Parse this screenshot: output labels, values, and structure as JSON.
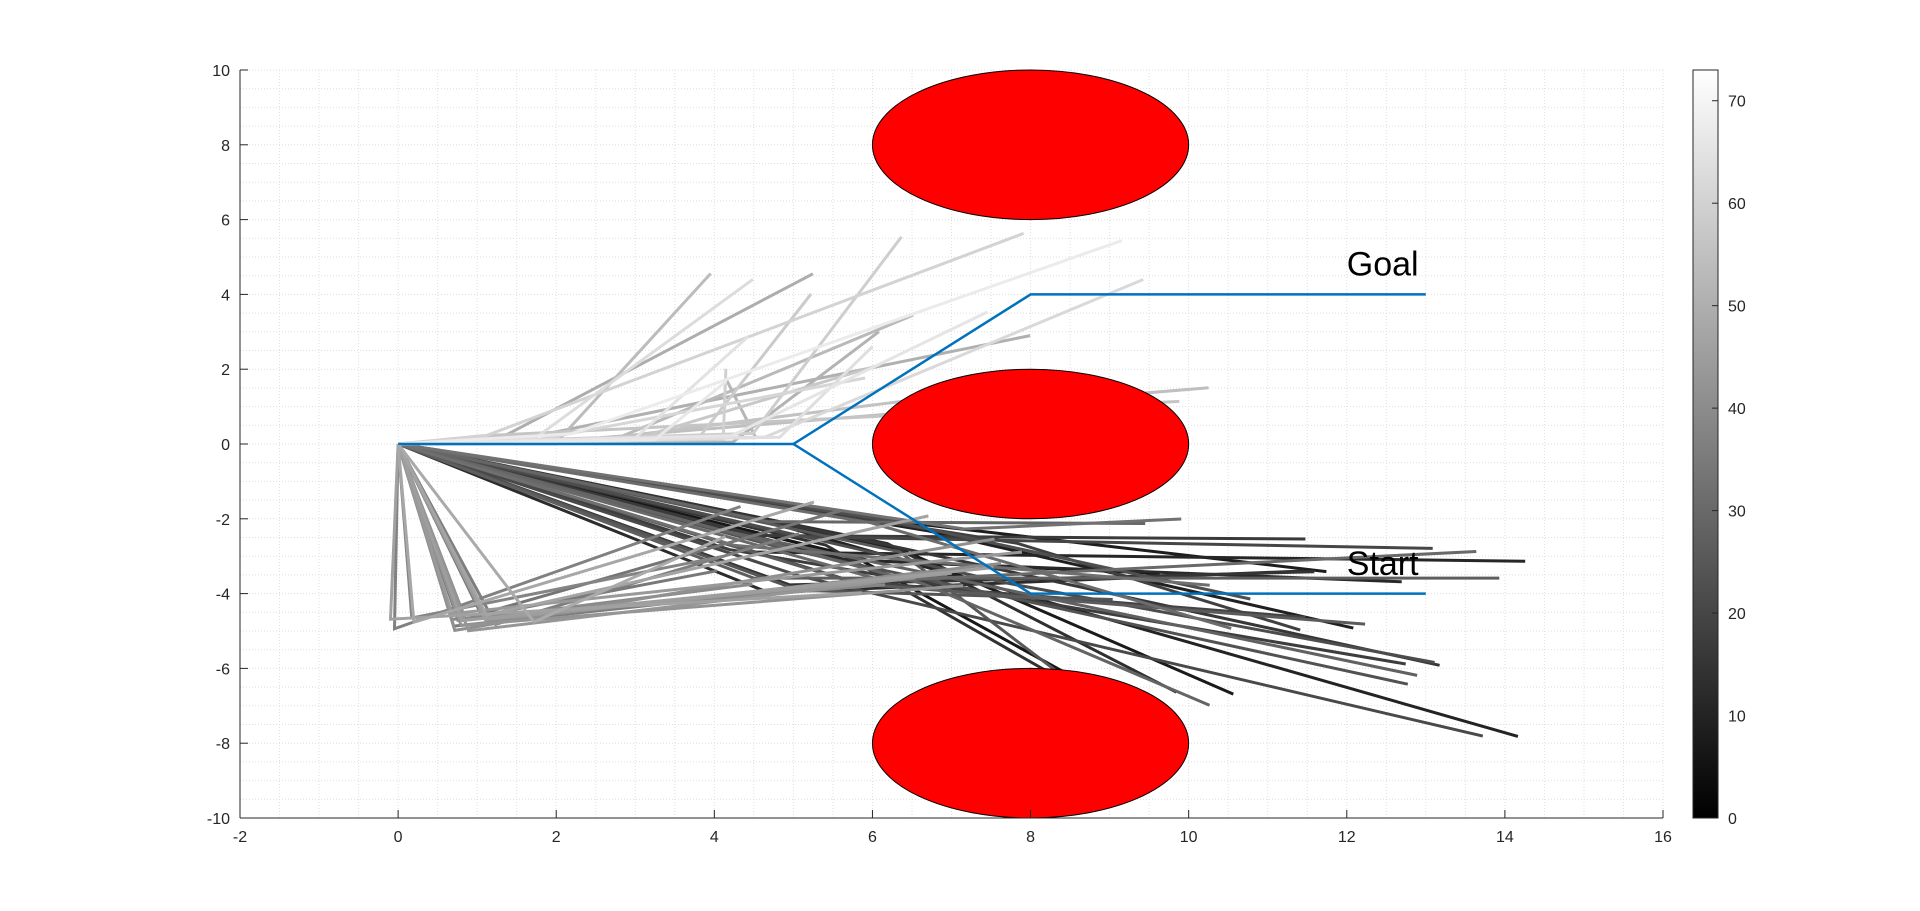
{
  "chart_data": {
    "type": "line",
    "title": "",
    "xlabel": "",
    "ylabel": "",
    "xlim": [
      -2,
      16
    ],
    "ylim": [
      -10,
      10
    ],
    "x_ticks": [
      "-2",
      "0",
      "2",
      "4",
      "6",
      "8",
      "10",
      "12",
      "14",
      "16"
    ],
    "y_ticks": [
      "-10",
      "-8",
      "-6",
      "-4",
      "-2",
      "0",
      "2",
      "4",
      "6",
      "8",
      "10"
    ],
    "grid": "major and minor (dotted)",
    "annotations": [
      {
        "text": "Goal",
        "x": 12,
        "y": 4.5
      },
      {
        "text": "Start",
        "x": 12,
        "y": -3.5
      }
    ],
    "obstacles": [
      {
        "cx": 8,
        "cy": 8,
        "rx": 2,
        "ry": 2,
        "color": "#ff0000"
      },
      {
        "cx": 8,
        "cy": 0,
        "rx": 2,
        "ry": 2,
        "color": "#ff0000"
      },
      {
        "cx": 8,
        "cy": -8,
        "rx": 2,
        "ry": 2,
        "color": "#ff0000"
      }
    ],
    "best_path": {
      "color": "#0072bd",
      "points": [
        [
          13,
          -4
        ],
        [
          8,
          -4
        ],
        [
          5,
          0
        ],
        [
          0,
          0
        ],
        [
          5,
          0
        ],
        [
          8,
          4
        ],
        [
          13,
          4
        ]
      ]
    },
    "colorbar": {
      "range": [
        0,
        73
      ],
      "ticks": [
        "0",
        "10",
        "20",
        "30",
        "40",
        "50",
        "60",
        "70"
      ],
      "colormap": "gray"
    },
    "trajectory_family_note_values": {
      "count": 74,
      "start_fan_center": [
        0,
        0
      ]
    }
  },
  "colors": {
    "axis": "#262626",
    "grid": "#dfdfdf",
    "obstacle": "#ff0000",
    "path": "#0072bd"
  }
}
